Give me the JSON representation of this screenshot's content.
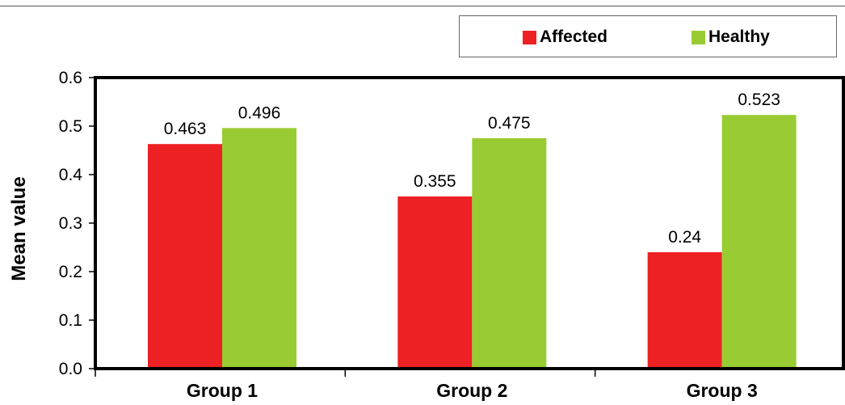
{
  "chart_data": {
    "type": "bar",
    "categories": [
      "Group 1",
      "Group 2",
      "Group 3"
    ],
    "series": [
      {
        "name": "Affected",
        "values": [
          0.463,
          0.355,
          0.24
        ],
        "labels": [
          "0.463",
          "0.355",
          "0.24"
        ],
        "color": "#ed2024"
      },
      {
        "name": "Healthy",
        "values": [
          0.496,
          0.475,
          0.523
        ],
        "labels": [
          "0.496",
          "0.475",
          "0.523"
        ],
        "color": "#99cc33"
      }
    ],
    "ylabel": "Mean value",
    "ylim": [
      0,
      0.6
    ],
    "yticks": [
      "0.0",
      "0.1",
      "0.2",
      "0.3",
      "0.4",
      "0.5",
      "0.6"
    ],
    "grid": false,
    "legend_position": "top-right"
  }
}
